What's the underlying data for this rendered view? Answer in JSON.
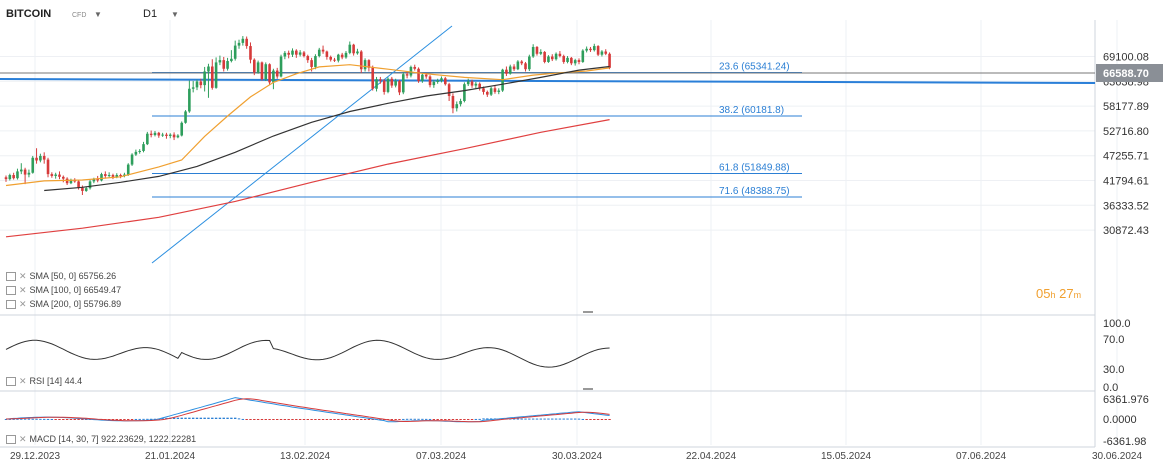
{
  "header": {
    "symbol": "BITCOIN",
    "type": "CFD",
    "timeframe": "D1"
  },
  "legend": {
    "sma50": "SMA [50, 0] 65756.26",
    "sma100": "SMA [100, 0] 66549.47",
    "sma200": "SMA [200, 0] 55796.89",
    "rsi": "RSI [14] 44.4",
    "macd": "MACD [14, 30, 7] 922.23629, 1222.22281"
  },
  "timer": {
    "hours": "05",
    "h": "h",
    "minutes": "27",
    "m": "m"
  },
  "colors": {
    "up": "#2e9e5c",
    "down": "#d63a3a",
    "sma50": "#f0a030",
    "sma100": "#333333",
    "sma200": "#e04040",
    "fib": "#2b7fd4",
    "trend": "#2b8fe0",
    "horiz": "#2a7fd8"
  },
  "chart_data": {
    "type": "candlestick",
    "price_axis_ticks": [
      "69100.08",
      "63638.98",
      "58177.89",
      "52716.80",
      "47255.71",
      "41794.61",
      "36333.52",
      "30872.43"
    ],
    "current_price": "66588.70",
    "date_ticks": [
      "29.12.2023",
      "21.01.2024",
      "13.02.2024",
      "07.03.2024",
      "30.03.2024",
      "22.04.2024",
      "15.05.2024",
      "07.06.2024",
      "30.06.2024"
    ],
    "fib_levels": [
      {
        "label": "23.6 (65341.24)",
        "value": 65341.24
      },
      {
        "label": "38.2 (60181.8)",
        "value": 60181.8
      },
      {
        "label": "61.8 (51849.88)",
        "value": 51849.88
      },
      {
        "label": "71.6 (48388.75)",
        "value": 48388.75
      }
    ],
    "rsi_ticks": [
      "100.0",
      "70.0",
      "30.0",
      "0.0"
    ],
    "macd_ticks": [
      "6361.976",
      "0.0000",
      "-6361.98"
    ]
  }
}
